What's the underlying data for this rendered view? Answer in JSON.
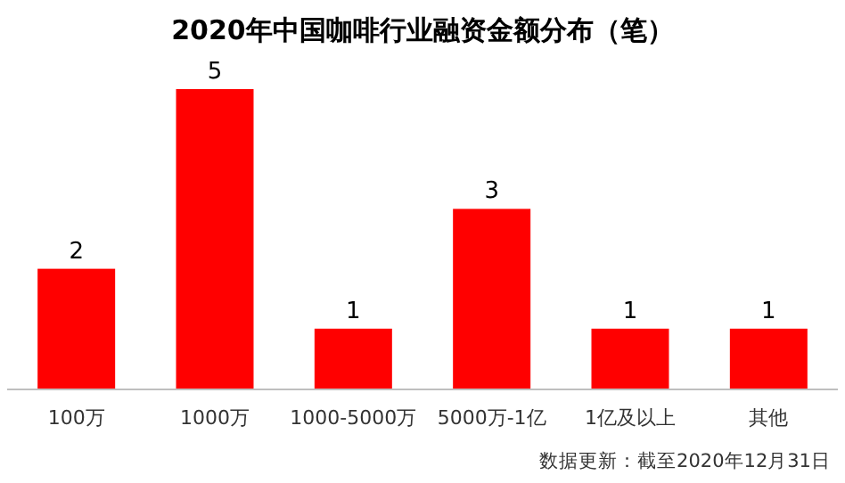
{
  "chart_data": {
    "type": "bar",
    "title": "2020年中国咖啡行业融资金额分布（笔）",
    "categories": [
      "100万",
      "1000万",
      "1000-5000万",
      "5000万-1亿",
      "1亿及以上",
      "其他"
    ],
    "values": [
      2,
      5,
      1,
      3,
      1,
      1
    ],
    "color": "#ff0000",
    "data_labels": true,
    "annotations": [
      "数据更新：截至2020年12月31日"
    ]
  }
}
